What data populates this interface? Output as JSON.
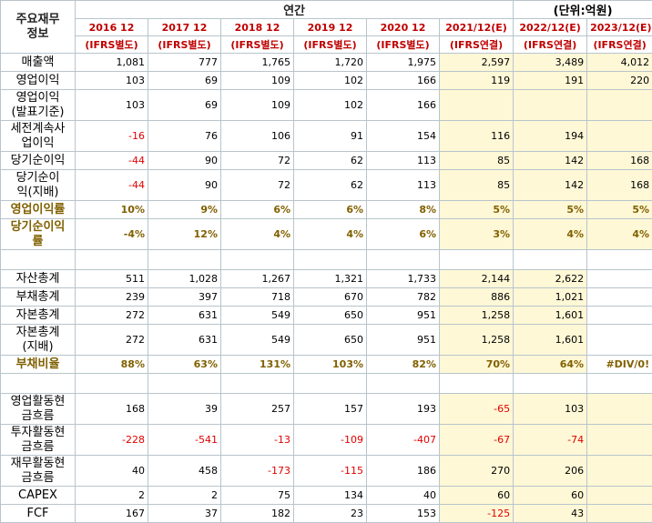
{
  "corner": "주요재무\n정보",
  "period": "연간",
  "unit": "(단위:억원)",
  "years": [
    "2016 12",
    "2017 12",
    "2018 12",
    "2019 12",
    "2020 12",
    "2021/12(E)",
    "2022/12(E)",
    "2023/12(E)"
  ],
  "accounting": [
    "(IFRS별도)",
    "(IFRS별도)",
    "(IFRS별도)",
    "(IFRS별도)",
    "(IFRS별도)",
    "(IFRS연결)",
    "(IFRS연결)",
    "(IFRS연결)"
  ],
  "sections": [
    {
      "rows": [
        {
          "label": "매출액",
          "values": [
            "1,081",
            "777",
            "1,765",
            "1,720",
            "1,975",
            "2,597",
            "3,489",
            "4,012"
          ]
        },
        {
          "label": "영업이익",
          "values": [
            "103",
            "69",
            "109",
            "102",
            "166",
            "119",
            "191",
            "220"
          ]
        },
        {
          "label": "영업이익\n(발표기준)",
          "values": [
            "103",
            "69",
            "109",
            "102",
            "166",
            "",
            "",
            ""
          ]
        },
        {
          "label": "세전계속사\n업이익",
          "values": [
            "-16",
            "76",
            "106",
            "91",
            "154",
            "116",
            "194",
            ""
          ]
        },
        {
          "label": "당기순이익",
          "values": [
            "-44",
            "90",
            "72",
            "62",
            "113",
            "85",
            "142",
            "168"
          ]
        },
        {
          "label": "당기순이\n익(지배)",
          "values": [
            "-44",
            "90",
            "72",
            "62",
            "113",
            "85",
            "142",
            "168"
          ]
        },
        {
          "label": "영업이익률",
          "ratio": true,
          "values": [
            "10%",
            "9%",
            "6%",
            "6%",
            "8%",
            "5%",
            "5%",
            "5%"
          ]
        },
        {
          "label": "당기순이익\n률",
          "ratio": true,
          "values": [
            "-4%",
            "12%",
            "4%",
            "4%",
            "6%",
            "3%",
            "4%",
            "4%"
          ]
        }
      ]
    },
    {
      "rows": [
        {
          "label": "자산총계",
          "values": [
            "511",
            "1,028",
            "1,267",
            "1,321",
            "1,733",
            "2,144",
            "2,622",
            ""
          ]
        },
        {
          "label": "부채총계",
          "values": [
            "239",
            "397",
            "718",
            "670",
            "782",
            "886",
            "1,021",
            ""
          ]
        },
        {
          "label": "자본총계",
          "values": [
            "272",
            "631",
            "549",
            "650",
            "951",
            "1,258",
            "1,601",
            ""
          ]
        },
        {
          "label": "자본총계\n(지배)",
          "values": [
            "272",
            "631",
            "549",
            "650",
            "951",
            "1,258",
            "1,601",
            ""
          ]
        },
        {
          "label": "부채비율",
          "ratio": true,
          "values": [
            "88%",
            "63%",
            "131%",
            "103%",
            "82%",
            "70%",
            "64%",
            "#DIV/0!"
          ]
        }
      ]
    },
    {
      "rows": [
        {
          "label": "영업활동현\n금흐름",
          "values": [
            "168",
            "39",
            "257",
            "157",
            "193",
            "-65",
            "103",
            ""
          ]
        },
        {
          "label": "투자활동현\n금흐름",
          "values": [
            "-228",
            "-541",
            "-13",
            "-109",
            "-407",
            "-67",
            "-74",
            ""
          ]
        },
        {
          "label": "재무활동현\n금흐름",
          "values": [
            "40",
            "458",
            "-173",
            "-115",
            "186",
            "270",
            "206",
            ""
          ]
        },
        {
          "label": "CAPEX",
          "values": [
            "2",
            "2",
            "75",
            "134",
            "40",
            "60",
            "60",
            ""
          ]
        },
        {
          "label": "FCF",
          "values": [
            "167",
            "37",
            "182",
            "23",
            "153",
            "-125",
            "43",
            ""
          ]
        }
      ]
    }
  ]
}
